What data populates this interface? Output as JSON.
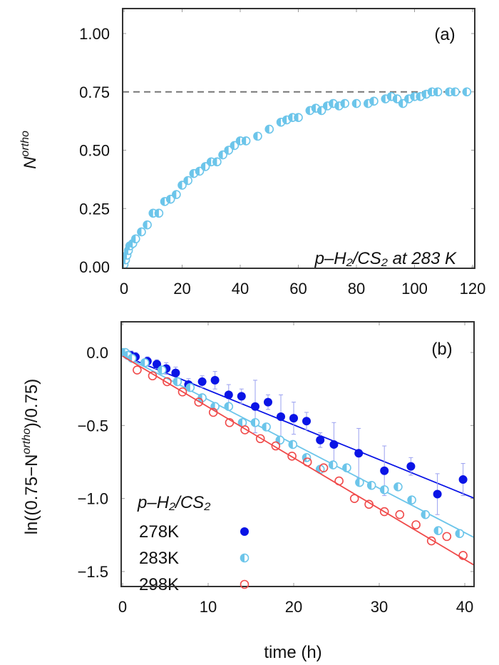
{
  "colors": {
    "s278": "#0a14e6",
    "s283": "#6cc5ea",
    "s298": "#f04a4a",
    "dash": "#777777",
    "frame": "#333333"
  },
  "chart_data": [
    {
      "type": "scatter",
      "panel_label": "(a)",
      "annotation": "p–H₂/CS₂ at 283 K",
      "xlabel": "",
      "ylabel": {
        "base": "N",
        "sup": "ortho"
      },
      "xlim": [
        -2,
        120
      ],
      "ylim": [
        -0.005,
        1.1
      ],
      "xticks": [
        0,
        20,
        40,
        60,
        80,
        100,
        120
      ],
      "xtick_labels": [
        "0",
        "20",
        "40",
        "60",
        "80",
        "100",
        "120"
      ],
      "yticks": [
        0,
        0.25,
        0.5,
        0.75,
        1.0
      ],
      "ytick_labels": [
        "0.00",
        "0.25",
        "0.50",
        "0.75",
        "1.00"
      ],
      "reference_line": {
        "y": 0.75,
        "style": "dashed"
      },
      "grid": false,
      "series": [
        {
          "marker": "half-filled-circle",
          "color": "#6cc5ea",
          "x": [
            0,
            0.5,
            1,
            1.5,
            2,
            3,
            4,
            6,
            8,
            10,
            12,
            14,
            16,
            18,
            20,
            22,
            24,
            26,
            28,
            30,
            32,
            34,
            36,
            38,
            40,
            42,
            46,
            50,
            54,
            56,
            58,
            60,
            64,
            66,
            68,
            70,
            72,
            74,
            76,
            80,
            84,
            86,
            90,
            92,
            94,
            96,
            98,
            100,
            102,
            104,
            106,
            108,
            112,
            114,
            118
          ],
          "y": [
            0.01,
            0.03,
            0.05,
            0.07,
            0.09,
            0.1,
            0.12,
            0.15,
            0.18,
            0.23,
            0.23,
            0.28,
            0.29,
            0.31,
            0.35,
            0.37,
            0.4,
            0.41,
            0.43,
            0.45,
            0.45,
            0.48,
            0.5,
            0.52,
            0.54,
            0.54,
            0.56,
            0.59,
            0.62,
            0.63,
            0.64,
            0.64,
            0.67,
            0.68,
            0.67,
            0.69,
            0.7,
            0.69,
            0.7,
            0.7,
            0.7,
            0.71,
            0.72,
            0.73,
            0.72,
            0.7,
            0.72,
            0.73,
            0.73,
            0.74,
            0.75,
            0.75,
            0.75,
            0.75,
            0.75
          ]
        }
      ]
    },
    {
      "type": "scatter",
      "panel_label": "(b)",
      "xlabel": "time (h)",
      "ylabel": {
        "pre": "ln((0.75−N",
        "sup": "ortho",
        "post": ")/0.75)"
      },
      "xlim": [
        -0.2,
        41.2
      ],
      "ylim": [
        -1.6,
        0.2
      ],
      "xticks": [
        0,
        10,
        20,
        30,
        40
      ],
      "xtick_labels": [
        "0",
        "10",
        "20",
        "30",
        "40"
      ],
      "yticks": [
        0,
        -0.5,
        -1.0,
        -1.5
      ],
      "ytick_labels": [
        "0.0",
        "−0.5",
        "−1.0",
        "−1.5"
      ],
      "grid": false,
      "legend": {
        "title": "p–H₂/CS₂",
        "placement": "bottom-left"
      },
      "series": [
        {
          "name": "278K",
          "marker": "filled-circle",
          "color": "#0a14e6",
          "x": [
            0,
            0.5,
            1,
            1.5,
            2.9,
            4.0,
            5.1,
            6.2,
            7.7,
            9.3,
            10.8,
            12.4,
            13.9,
            15.5,
            17.0,
            18.5,
            20.0,
            21.5,
            23.1,
            24.7,
            27.6,
            30.6,
            33.7,
            36.8,
            39.8
          ],
          "y": [
            0,
            -0.01,
            -0.02,
            -0.03,
            -0.06,
            -0.08,
            -0.11,
            -0.14,
            -0.22,
            -0.2,
            -0.19,
            -0.29,
            -0.3,
            -0.37,
            -0.34,
            -0.44,
            -0.45,
            -0.47,
            -0.6,
            -0.63,
            -0.69,
            -0.81,
            -0.78,
            -0.97,
            -0.87
          ],
          "yerr": [
            0.02,
            0.02,
            0.03,
            0.03,
            0.03,
            0.03,
            0.04,
            0.04,
            0.04,
            0.04,
            0.06,
            0.07,
            0.05,
            0.18,
            0.05,
            0.15,
            0.11,
            0.06,
            0.05,
            0.15,
            0.17,
            0.17,
            0.06,
            0.14,
            0.11
          ],
          "fit": {
            "x": [
              0,
              41.2
            ],
            "y": [
              -0.02,
              -1.0
            ]
          }
        },
        {
          "name": "283K",
          "marker": "half-filled-circle",
          "color": "#6cc5ea",
          "x": [
            0,
            0.3,
            0.6,
            1.1,
            2.6,
            4.6,
            6.4,
            7.9,
            9.3,
            10.8,
            12.4,
            14.0,
            15.5,
            16.8,
            18.4,
            19.9,
            21.5,
            23.1,
            24.6,
            26.2,
            27.7,
            29.1,
            30.6,
            32.2,
            33.8,
            35.4,
            36.9,
            39.4
          ],
          "y": [
            0,
            0.0,
            -0.02,
            -0.04,
            -0.07,
            -0.12,
            -0.2,
            -0.24,
            -0.31,
            -0.37,
            -0.37,
            -0.48,
            -0.48,
            -0.51,
            -0.6,
            -0.63,
            -0.72,
            -0.8,
            -0.77,
            -0.79,
            -0.89,
            -0.91,
            -0.94,
            -0.92,
            -1.01,
            -1.11,
            -1.22,
            -1.24
          ],
          "fit": {
            "x": [
              0,
              41.2
            ],
            "y": [
              -0.02,
              -1.27
            ]
          }
        },
        {
          "name": "298K",
          "marker": "open-circle",
          "color": "#f04a4a",
          "x": [
            1.7,
            3.5,
            5.2,
            7.0,
            8.9,
            10.6,
            12.5,
            14.3,
            16.1,
            17.9,
            19.8,
            21.6,
            23.5,
            25.3,
            27.1,
            28.8,
            30.6,
            32.4,
            34.3,
            36.1,
            37.9,
            39.8
          ],
          "y": [
            -0.12,
            -0.16,
            -0.2,
            -0.27,
            -0.34,
            -0.41,
            -0.48,
            -0.53,
            -0.59,
            -0.64,
            -0.71,
            -0.75,
            -0.79,
            -0.88,
            -1.0,
            -1.04,
            -1.09,
            -1.11,
            -1.18,
            -1.29,
            -1.26,
            -1.39
          ],
          "fit": {
            "x": [
              0,
              41.2
            ],
            "y": [
              -0.025,
              -1.46
            ]
          }
        }
      ]
    }
  ]
}
